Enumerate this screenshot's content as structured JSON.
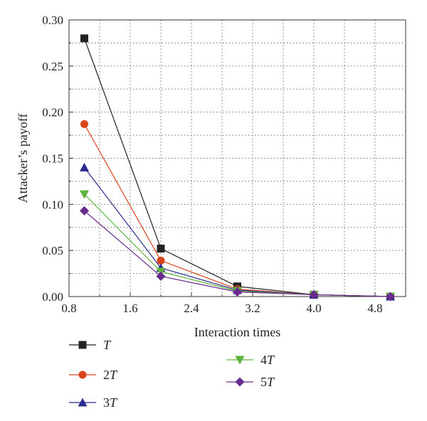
{
  "chart_data": {
    "type": "line",
    "title": "",
    "xlabel": "Interaction times",
    "ylabel": "Attacker’s payoff",
    "xlim": [
      0.8,
      5.2
    ],
    "ylim": [
      0,
      0.3
    ],
    "x_ticks": [
      "0.8",
      "1.6",
      "2.4",
      "3.2",
      "4.0",
      "4.8"
    ],
    "y_ticks": [
      "0.00",
      "0.05",
      "0.10",
      "0.15",
      "0.20",
      "0.25",
      "0.30"
    ],
    "grid": true,
    "legend_position": "below",
    "x": [
      1,
      2,
      3,
      4,
      5
    ],
    "series": [
      {
        "name": "T",
        "coef": "",
        "values": [
          0.28,
          0.052,
          0.011,
          0.002,
          0.0
        ],
        "color": "#222222",
        "marker": "square"
      },
      {
        "name": "2T",
        "coef": "2",
        "values": [
          0.187,
          0.039,
          0.008,
          0.002,
          0.0
        ],
        "color": "#d9441a",
        "marker": "circle"
      },
      {
        "name": "3T",
        "coef": "3",
        "values": [
          0.14,
          0.031,
          0.007,
          0.002,
          0.0
        ],
        "color": "#2b2a8e",
        "marker": "triangle-up"
      },
      {
        "name": "4T",
        "coef": "4",
        "values": [
          0.111,
          0.027,
          0.006,
          0.002,
          0.0
        ],
        "color": "#5db33c",
        "marker": "triangle-down"
      },
      {
        "name": "5T",
        "coef": "5",
        "values": [
          0.093,
          0.022,
          0.005,
          0.002,
          0.0
        ],
        "color": "#6a2b8e",
        "marker": "diamond"
      }
    ]
  }
}
